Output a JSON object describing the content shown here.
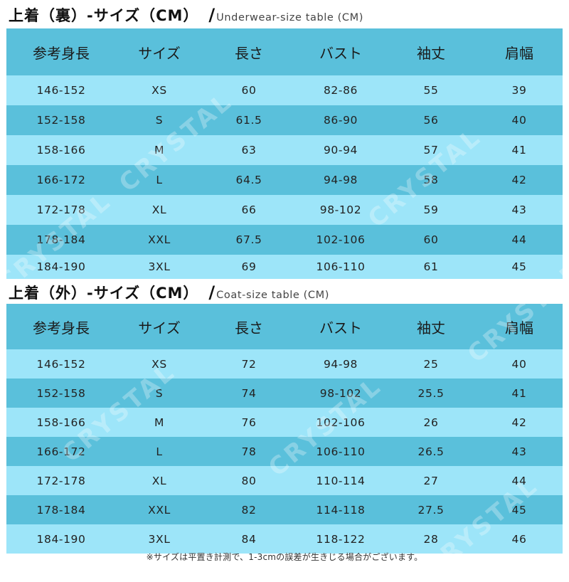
{
  "inner": {
    "title_jp": "上着（裏）-サイズ（CM）",
    "slash": "/",
    "title_en": "Underwear-size table (CM)",
    "headers": [
      "参考身長",
      "サイズ",
      "長さ",
      "バスト",
      "袖丈",
      "肩幅"
    ],
    "rows": [
      [
        "146-152",
        "XS",
        "60",
        "82-86",
        "55",
        "39"
      ],
      [
        "152-158",
        "S",
        "61.5",
        "86-90",
        "56",
        "40"
      ],
      [
        "158-166",
        "M",
        "63",
        "90-94",
        "57",
        "41"
      ],
      [
        "166-172",
        "L",
        "64.5",
        "94-98",
        "58",
        "42"
      ],
      [
        "172-178",
        "XL",
        "66",
        "98-102",
        "59",
        "43"
      ],
      [
        "178-184",
        "XXL",
        "67.5",
        "102-106",
        "60",
        "44"
      ],
      [
        "184-190",
        "3XL",
        "69",
        "106-110",
        "61",
        "45"
      ]
    ]
  },
  "outer": {
    "title_jp": "上着（外）-サイズ（CM）",
    "slash": "/",
    "title_en": "Coat-size table (CM)",
    "headers": [
      "参考身長",
      "サイズ",
      "長さ",
      "バスト",
      "袖丈",
      "肩幅"
    ],
    "rows": [
      [
        "146-152",
        "XS",
        "72",
        "94-98",
        "25",
        "40"
      ],
      [
        "152-158",
        "S",
        "74",
        "98-102",
        "25.5",
        "41"
      ],
      [
        "158-166",
        "M",
        "76",
        "102-106",
        "26",
        "42"
      ],
      [
        "166-172",
        "L",
        "78",
        "106-110",
        "26.5",
        "43"
      ],
      [
        "172-178",
        "XL",
        "80",
        "110-114",
        "27",
        "44"
      ],
      [
        "178-184",
        "XXL",
        "82",
        "114-118",
        "27.5",
        "45"
      ],
      [
        "184-190",
        "3XL",
        "84",
        "118-122",
        "28",
        "46"
      ]
    ]
  },
  "footnote": "※サイズは平置き計測で、1-3cmの誤差が生きじる場合がございます。",
  "watermark": "CRYSTAL",
  "colors": {
    "row_dark": "#5ac0db",
    "row_light": "#9de5f9"
  }
}
